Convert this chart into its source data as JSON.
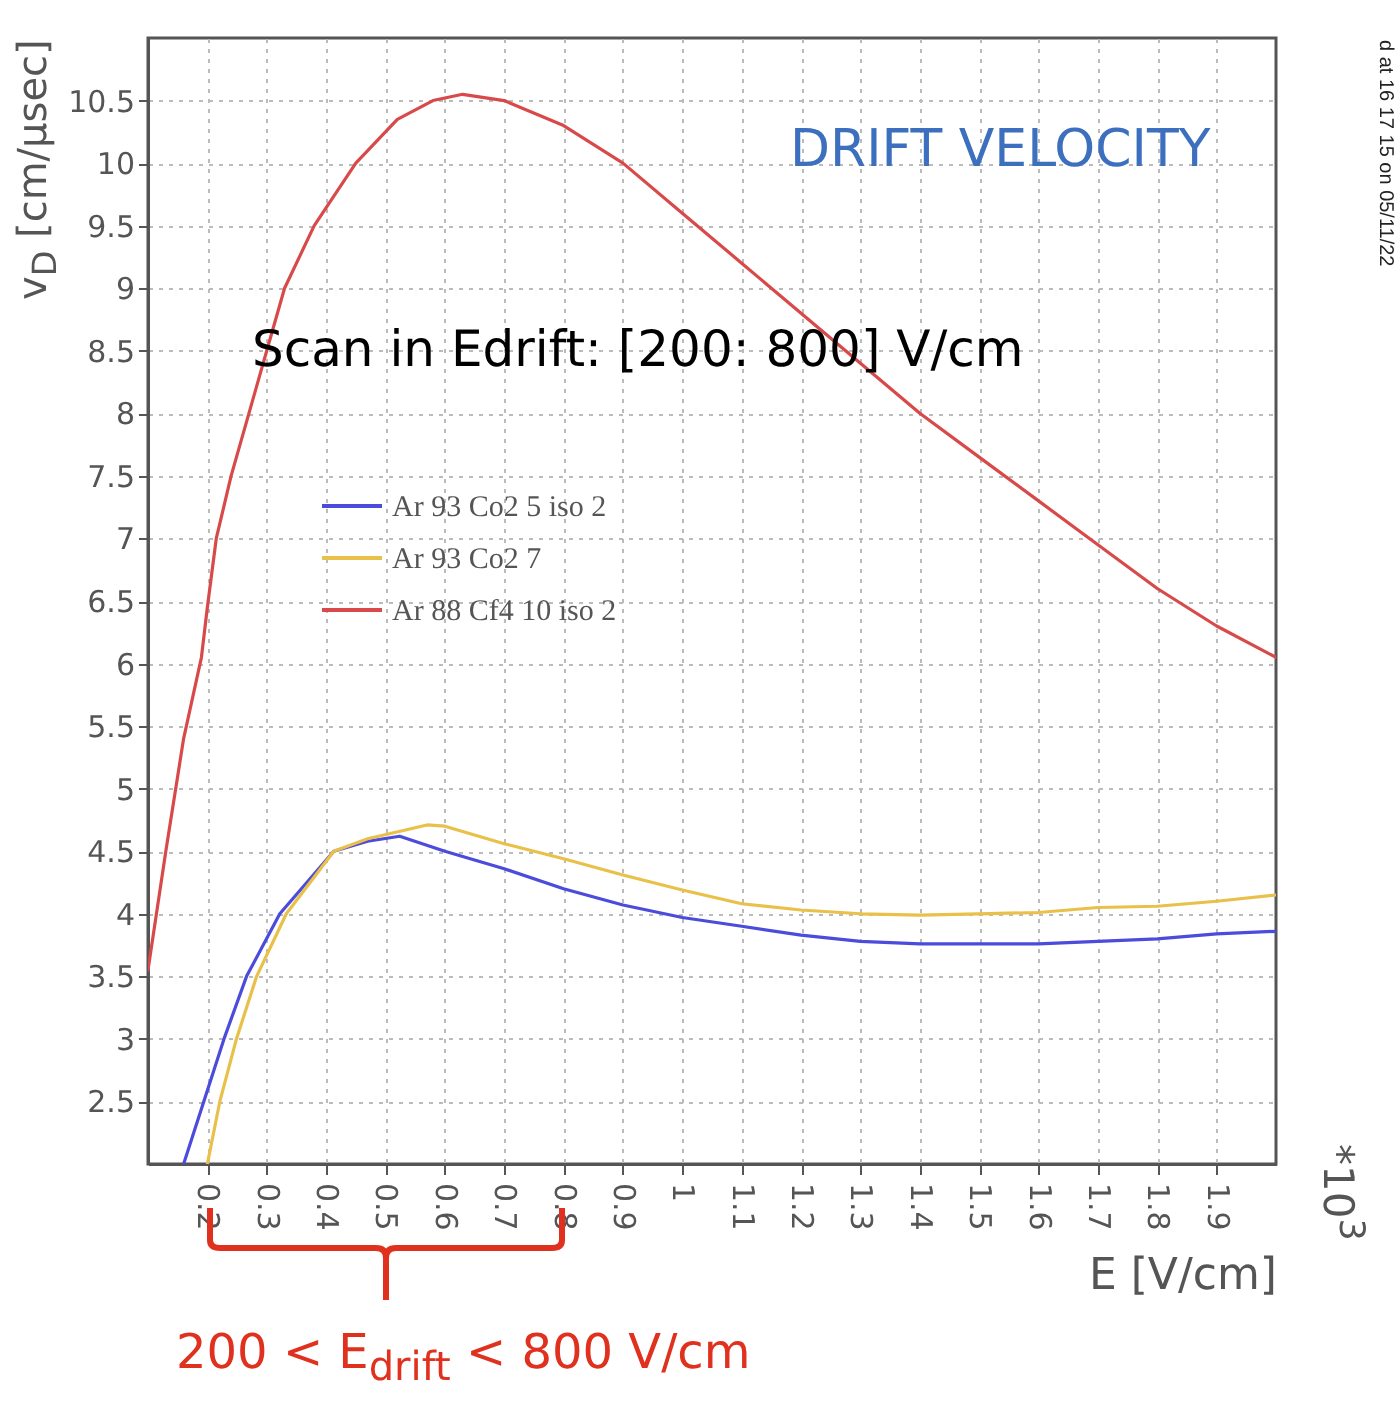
{
  "chart_data": {
    "type": "line",
    "xlabel": "E [V/cm]",
    "ylabel": "v$_{D}$ [cm/μsec]",
    "annotations": [
      "DRIFT VELOCITY",
      "Scan in Edrift: [200: 800] V/cm",
      "200 < E$_{drift}$ < 800 V/cm",
      "*10$^{3}$",
      "d at 16 17 15 on 05/11/22"
    ],
    "xlim": [
      0.1,
      2.0
    ],
    "xticks": [
      0.2,
      0.3,
      0.4,
      0.5,
      0.6,
      0.7,
      0.8,
      0.9,
      1,
      1.1,
      1.2,
      1.3,
      1.4,
      1.5,
      1.6,
      1.7,
      1.8,
      1.9
    ],
    "ylim": [
      2,
      11
    ],
    "yticks": [
      2.5,
      3,
      3.5,
      4,
      4.5,
      5,
      5.5,
      6,
      6.5,
      7,
      7.5,
      8,
      8.5,
      9,
      9.5,
      10,
      10.5
    ],
    "grid": true,
    "legend": "left",
    "series": [
      {
        "name": "Ar 93 Co2 5 iso 2",
        "color": "#4b4bdc",
        "x": [
          0.16,
          0.194,
          0.228,
          0.266,
          0.322,
          0.413,
          0.47,
          0.524,
          0.6,
          0.7,
          0.8,
          0.9,
          1.0,
          1.1,
          1.2,
          1.3,
          1.4,
          1.5,
          1.6,
          1.7,
          1.8,
          1.9,
          2.0
        ],
        "values": [
          2.0,
          2.5,
          3.0,
          3.5,
          4.0,
          4.5,
          4.58,
          4.62,
          4.5,
          4.36,
          4.2,
          4.07,
          3.97,
          3.9,
          3.83,
          3.78,
          3.76,
          3.76,
          3.76,
          3.78,
          3.8,
          3.84,
          3.86
        ]
      },
      {
        "name": "Ar 93 Co2 7",
        "color": "#e8c04a",
        "x": [
          0.2,
          0.221,
          0.249,
          0.283,
          0.333,
          0.413,
          0.47,
          0.57,
          0.6,
          0.7,
          0.8,
          0.9,
          1.0,
          1.1,
          1.2,
          1.3,
          1.4,
          1.5,
          1.6,
          1.7,
          1.8,
          1.9,
          2.0
        ],
        "values": [
          2.0,
          2.5,
          3.0,
          3.5,
          4.0,
          4.5,
          4.6,
          4.71,
          4.7,
          4.56,
          4.44,
          4.31,
          4.19,
          4.08,
          4.03,
          4.0,
          3.99,
          4.0,
          4.01,
          4.05,
          4.06,
          4.1,
          4.15
        ]
      },
      {
        "name": "Ar 88 Cf4 10 iso 2",
        "color": "#d84a4a",
        "x": [
          0.1,
          0.13,
          0.16,
          0.19,
          0.2,
          0.215,
          0.24,
          0.27,
          0.3,
          0.33,
          0.38,
          0.45,
          0.52,
          0.58,
          0.63,
          0.7,
          0.8,
          0.9,
          1.0,
          1.1,
          1.2,
          1.3,
          1.4,
          1.5,
          1.6,
          1.7,
          1.8,
          1.9,
          2.0
        ],
        "values": [
          3.55,
          4.5,
          5.4,
          6.05,
          6.45,
          7.0,
          7.5,
          8.0,
          8.5,
          9.0,
          9.5,
          10.0,
          10.35,
          10.5,
          10.55,
          10.5,
          10.3,
          10.0,
          9.6,
          9.2,
          8.8,
          8.4,
          8.0,
          7.65,
          7.3,
          6.95,
          6.6,
          6.3,
          6.05
        ]
      }
    ]
  }
}
